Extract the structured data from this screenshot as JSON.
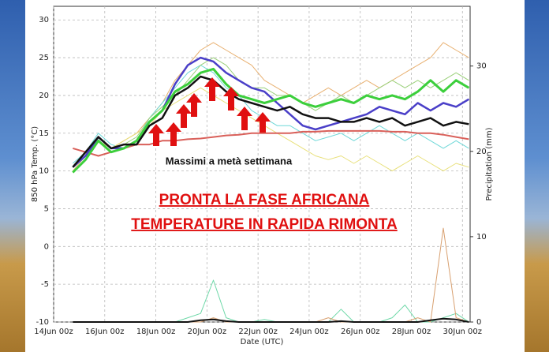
{
  "chart_data": {
    "type": "line",
    "xlabel": "Date (UTC)",
    "ylabel": "850 hPa Temp. (°C)",
    "y2label": "Precipitation (mm)",
    "annotations": [
      "Massimi a metà settimana",
      "PRONTA LA FASE AFRICANA",
      "TEMPERATURE IN RAPIDA RIMONTA"
    ],
    "grid": true,
    "xlim": [
      0,
      16.3
    ],
    "xticks": [
      {
        "value": 0,
        "label": "14Jun 00z"
      },
      {
        "value": 2,
        "label": "16Jun 00z"
      },
      {
        "value": 4,
        "label": "18Jun 00z"
      },
      {
        "value": 6,
        "label": "20Jun 00z"
      },
      {
        "value": 8,
        "label": "22Jun 00z"
      },
      {
        "value": 10,
        "label": "24Jun 00z"
      },
      {
        "value": 12,
        "label": "26Jun 00z"
      },
      {
        "value": 14,
        "label": "28Jun 00z"
      },
      {
        "value": 16,
        "label": "30Jun 00z"
      }
    ],
    "ylim": [
      -10,
      31.8
    ],
    "yticks": [
      -10,
      -5,
      0,
      5,
      10,
      15,
      20,
      25,
      30
    ],
    "y2lim": [
      0,
      37
    ],
    "y2ticks": [
      0,
      10,
      20,
      30
    ],
    "x": [
      0.75,
      1.25,
      1.75,
      2.25,
      2.75,
      3.25,
      3.75,
      4.25,
      4.75,
      5.25,
      5.75,
      6.25,
      6.75,
      7.25,
      7.75,
      8.25,
      8.75,
      9.25,
      9.75,
      10.25,
      10.75,
      11.25,
      11.75,
      12.25,
      12.75,
      13.25,
      13.75,
      14.25,
      14.75,
      15.25,
      15.75,
      16.25
    ],
    "series": [
      {
        "color": "#e8b070",
        "width": 1,
        "values": [
          10,
          12,
          14,
          13,
          14,
          15,
          17,
          19,
          22,
          24,
          26,
          27,
          26,
          25,
          24,
          22,
          21,
          20,
          19,
          20,
          21,
          20,
          21,
          22,
          21,
          22,
          23,
          24,
          25,
          27,
          26,
          25
        ]
      },
      {
        "color": "#6ed8d8",
        "width": 1,
        "values": [
          11,
          12.5,
          15,
          13.5,
          13,
          14,
          17,
          19,
          21,
          23,
          24,
          23,
          21,
          20,
          18,
          17,
          16,
          16,
          15,
          14,
          14.5,
          15,
          14,
          15,
          16,
          15,
          14,
          15,
          14,
          13,
          14,
          13
        ]
      },
      {
        "color": "#e8e07a",
        "width": 1,
        "values": [
          10,
          11.5,
          14,
          13,
          14,
          15,
          16,
          18,
          19,
          20,
          21,
          20,
          19,
          18,
          17,
          16,
          15,
          14,
          13,
          12,
          11.5,
          12,
          11,
          12,
          11,
          10,
          11,
          12,
          11,
          10,
          11,
          10.5
        ]
      },
      {
        "color": "#9ad07a",
        "width": 1,
        "values": [
          10.5,
          12,
          14.5,
          13,
          13.5,
          14.5,
          17,
          18.5,
          20,
          22,
          24,
          25,
          24,
          22,
          21,
          21,
          20,
          20,
          19,
          18,
          19,
          20,
          19,
          20,
          21,
          22,
          21,
          22,
          21,
          22,
          23,
          22
        ]
      },
      {
        "color": "#d9605a",
        "width": 2,
        "values": [
          13,
          12.5,
          12,
          12.5,
          13,
          13.5,
          13.5,
          14,
          14,
          14.2,
          14.3,
          14.5,
          14.7,
          14.8,
          15,
          15,
          15,
          15,
          15.2,
          15.2,
          15.3,
          15.3,
          15.3,
          15.3,
          15.3,
          15.2,
          15.2,
          15,
          15,
          14.8,
          14.5,
          14.2
        ]
      },
      {
        "color": "#4a3fc8",
        "width": 2.5,
        "values": [
          10.5,
          12,
          14.5,
          13,
          13,
          14,
          16.5,
          18,
          21.5,
          24,
          25,
          24.5,
          23,
          22,
          21,
          20.5,
          19,
          17.5,
          16,
          15.5,
          16,
          16.5,
          17,
          17.5,
          18.5,
          18,
          17.5,
          19,
          18,
          19,
          18.5,
          19.5
        ]
      },
      {
        "color": "#3ccf3c",
        "width": 3,
        "values": [
          9.8,
          11.5,
          14,
          12.5,
          13,
          14,
          16.5,
          18,
          20.5,
          21.5,
          23,
          23.5,
          21.5,
          20,
          19.5,
          19,
          19.5,
          20,
          19,
          18.5,
          19,
          19.5,
          19,
          20,
          19.5,
          20,
          19.5,
          20.5,
          22,
          20.5,
          22,
          21
        ]
      },
      {
        "color": "#111111",
        "width": 2.5,
        "values": [
          10.5,
          12.5,
          14.5,
          13,
          13.5,
          13.5,
          16,
          17,
          20,
          21,
          22.5,
          22,
          20.5,
          19.5,
          19,
          18.5,
          18,
          18.5,
          17.5,
          17,
          17,
          16.5,
          16.5,
          17,
          16.5,
          17,
          16,
          16.5,
          17,
          16,
          16.5,
          16.2
        ]
      },
      {
        "color": "#6ed8a8",
        "width": 1,
        "axis": "y2",
        "values": [
          0,
          0,
          0,
          0,
          0,
          0,
          0,
          0,
          0,
          0.5,
          1,
          4.9,
          0.5,
          0,
          0,
          0.3,
          0,
          0,
          0,
          0,
          0,
          1.5,
          0,
          0,
          0,
          0.5,
          2,
          0,
          0,
          0.5,
          1,
          0
        ]
      },
      {
        "color": "#d8a070",
        "width": 1,
        "axis": "y2",
        "values": [
          0,
          0,
          0,
          0,
          0,
          0,
          0,
          0,
          0,
          0,
          0,
          0.5,
          0,
          0,
          0,
          0,
          0,
          0,
          0,
          0,
          0.5,
          0,
          0,
          0,
          0,
          0,
          0,
          0.5,
          0,
          11,
          0.5,
          0
        ]
      },
      {
        "color": "#111111",
        "width": 2,
        "axis": "y2",
        "values": [
          0,
          0,
          0,
          0,
          0,
          0,
          0,
          0,
          0,
          0,
          0.2,
          0.3,
          0.1,
          0,
          0,
          0,
          0,
          0,
          0,
          0,
          0,
          0.1,
          0,
          0,
          0,
          0,
          0,
          0,
          0.2,
          0.4,
          0.3,
          0
        ]
      }
    ]
  }
}
